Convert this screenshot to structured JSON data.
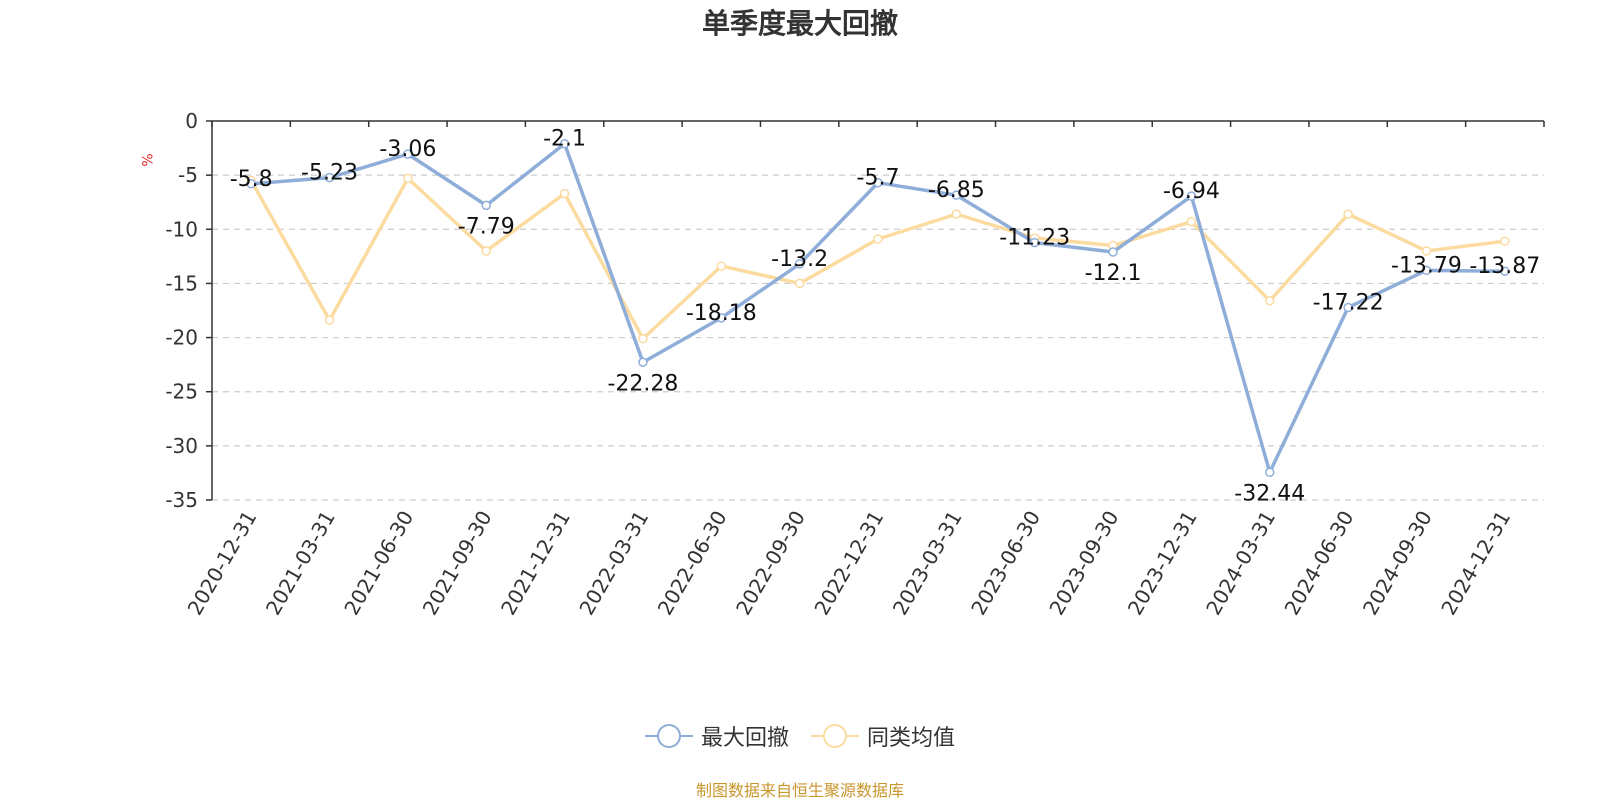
{
  "chart_data": {
    "type": "line",
    "title": "单季度最大回撤",
    "ylabel": "%",
    "categories": [
      "2020-12-31",
      "2021-03-31",
      "2021-06-30",
      "2021-09-30",
      "2021-12-31",
      "2022-03-31",
      "2022-06-30",
      "2022-09-30",
      "2022-12-31",
      "2023-03-31",
      "2023-06-30",
      "2023-09-30",
      "2023-12-31",
      "2024-03-31",
      "2024-06-30",
      "2024-09-30",
      "2024-12-31"
    ],
    "ylim": [
      -35,
      0
    ],
    "yticks": [
      0,
      -5,
      -10,
      -15,
      -20,
      -25,
      -30,
      -35
    ],
    "grid": true,
    "legend_position": "bottom",
    "series": [
      {
        "name": "最大回撤",
        "color": "#8eaed9",
        "data_labels": true,
        "values": [
          -5.8,
          -5.23,
          -3.06,
          -7.79,
          -2.1,
          -22.28,
          -18.18,
          -13.2,
          -5.7,
          -6.85,
          -11.23,
          -12.1,
          -6.94,
          -32.44,
          -17.22,
          -13.79,
          -13.87
        ]
      },
      {
        "name": "同类均值",
        "color": "#fcdba0",
        "data_labels": false,
        "values": [
          -5.5,
          -18.4,
          -5.3,
          -12.0,
          -6.7,
          -20.1,
          -13.4,
          -15.0,
          -10.9,
          -8.6,
          -10.8,
          -11.5,
          -9.3,
          -16.6,
          -8.6,
          -12.0,
          -11.1
        ]
      }
    ]
  },
  "colors": {
    "unit_label": "#e03030",
    "source_note": "#c9962e",
    "grid": "#cccccc",
    "axis": "#333333"
  },
  "source_note": "制图数据来自恒生聚源数据库"
}
